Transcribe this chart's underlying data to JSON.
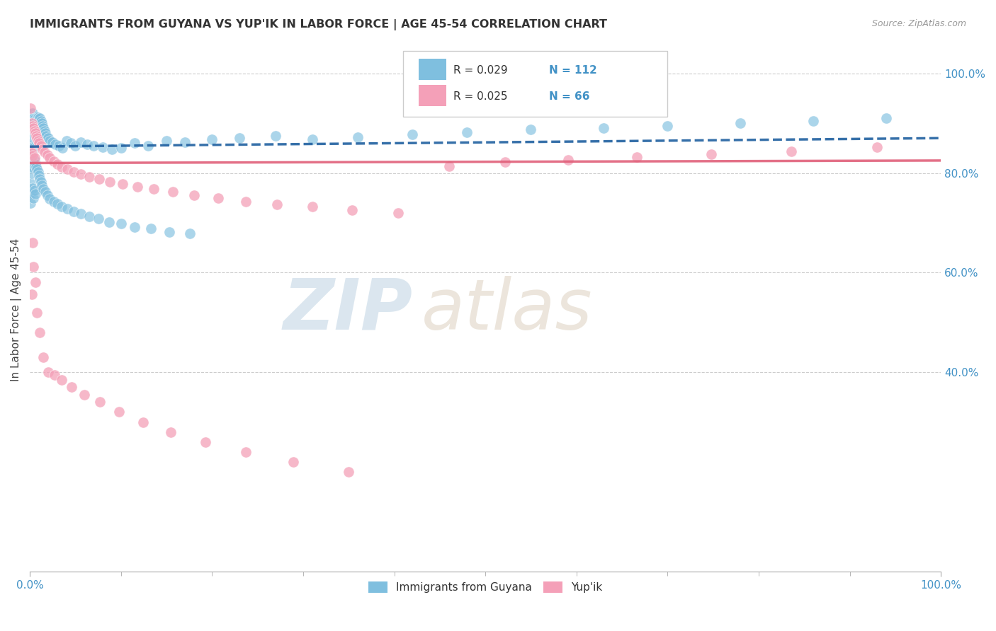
{
  "title": "IMMIGRANTS FROM GUYANA VS YUP'IK IN LABOR FORCE | AGE 45-54 CORRELATION CHART",
  "source": "Source: ZipAtlas.com",
  "ylabel": "In Labor Force | Age 45-54",
  "legend_labels": [
    "Immigrants from Guyana",
    "Yup'ik"
  ],
  "blue_color": "#7fbfdf",
  "pink_color": "#f4a0b8",
  "trend_blue": "#2060a0",
  "trend_pink": "#e0607a",
  "watermark_zip": "ZIP",
  "watermark_atlas": "atlas",
  "blue_scatter_x": [
    0.001,
    0.001,
    0.001,
    0.001,
    0.002,
    0.002,
    0.002,
    0.002,
    0.002,
    0.003,
    0.003,
    0.003,
    0.003,
    0.003,
    0.004,
    0.004,
    0.004,
    0.004,
    0.005,
    0.005,
    0.005,
    0.005,
    0.006,
    0.006,
    0.006,
    0.007,
    0.007,
    0.007,
    0.008,
    0.008,
    0.008,
    0.009,
    0.009,
    0.01,
    0.01,
    0.011,
    0.011,
    0.012,
    0.013,
    0.014,
    0.015,
    0.016,
    0.017,
    0.018,
    0.02,
    0.022,
    0.025,
    0.028,
    0.032,
    0.036,
    0.04,
    0.045,
    0.05,
    0.056,
    0.063,
    0.07,
    0.08,
    0.09,
    0.1,
    0.115,
    0.13,
    0.15,
    0.17,
    0.2,
    0.23,
    0.27,
    0.31,
    0.36,
    0.42,
    0.48,
    0.55,
    0.63,
    0.7,
    0.78,
    0.86,
    0.94,
    0.001,
    0.001,
    0.002,
    0.002,
    0.003,
    0.003,
    0.004,
    0.004,
    0.005,
    0.005,
    0.006,
    0.006,
    0.007,
    0.008,
    0.009,
    0.01,
    0.011,
    0.012,
    0.013,
    0.015,
    0.017,
    0.019,
    0.022,
    0.026,
    0.03,
    0.035,
    0.041,
    0.048,
    0.056,
    0.065,
    0.075,
    0.087,
    0.1,
    0.115,
    0.133,
    0.153,
    0.176
  ],
  "blue_scatter_y": [
    0.9,
    0.88,
    0.86,
    0.84,
    0.92,
    0.9,
    0.88,
    0.86,
    0.84,
    0.92,
    0.9,
    0.88,
    0.86,
    0.84,
    0.91,
    0.89,
    0.87,
    0.85,
    0.915,
    0.895,
    0.875,
    0.855,
    0.91,
    0.89,
    0.87,
    0.905,
    0.885,
    0.865,
    0.91,
    0.888,
    0.868,
    0.912,
    0.885,
    0.908,
    0.882,
    0.91,
    0.88,
    0.905,
    0.9,
    0.895,
    0.89,
    0.885,
    0.88,
    0.875,
    0.87,
    0.865,
    0.862,
    0.858,
    0.855,
    0.85,
    0.865,
    0.86,
    0.855,
    0.862,
    0.858,
    0.855,
    0.852,
    0.848,
    0.85,
    0.86,
    0.855,
    0.865,
    0.862,
    0.868,
    0.87,
    0.875,
    0.868,
    0.872,
    0.878,
    0.882,
    0.888,
    0.89,
    0.895,
    0.9,
    0.905,
    0.91,
    0.78,
    0.74,
    0.8,
    0.76,
    0.82,
    0.77,
    0.81,
    0.75,
    0.825,
    0.765,
    0.818,
    0.758,
    0.812,
    0.808,
    0.802,
    0.795,
    0.788,
    0.782,
    0.775,
    0.768,
    0.762,
    0.755,
    0.748,
    0.742,
    0.738,
    0.732,
    0.728,
    0.722,
    0.718,
    0.712,
    0.708,
    0.702,
    0.698,
    0.692,
    0.688,
    0.682,
    0.678
  ],
  "pink_scatter_x": [
    0.001,
    0.001,
    0.002,
    0.002,
    0.003,
    0.003,
    0.004,
    0.005,
    0.005,
    0.006,
    0.007,
    0.008,
    0.009,
    0.01,
    0.012,
    0.014,
    0.016,
    0.019,
    0.022,
    0.026,
    0.03,
    0.035,
    0.041,
    0.048,
    0.056,
    0.065,
    0.076,
    0.088,
    0.102,
    0.118,
    0.136,
    0.157,
    0.18,
    0.207,
    0.237,
    0.271,
    0.31,
    0.354,
    0.404,
    0.46,
    0.522,
    0.591,
    0.666,
    0.748,
    0.836,
    0.93,
    0.002,
    0.003,
    0.004,
    0.006,
    0.008,
    0.011,
    0.015,
    0.02,
    0.027,
    0.035,
    0.046,
    0.06,
    0.077,
    0.098,
    0.124,
    0.155,
    0.193,
    0.237,
    0.289,
    0.35
  ],
  "pink_scatter_y": [
    0.93,
    0.845,
    0.9,
    0.84,
    0.895,
    0.835,
    0.89,
    0.885,
    0.83,
    0.88,
    0.875,
    0.87,
    0.865,
    0.86,
    0.855,
    0.848,
    0.842,
    0.836,
    0.83,
    0.824,
    0.818,
    0.812,
    0.808,
    0.802,
    0.798,
    0.792,
    0.788,
    0.782,
    0.778,
    0.772,
    0.768,
    0.762,
    0.755,
    0.749,
    0.743,
    0.737,
    0.732,
    0.726,
    0.72,
    0.814,
    0.822,
    0.826,
    0.832,
    0.838,
    0.844,
    0.852,
    0.556,
    0.66,
    0.612,
    0.58,
    0.52,
    0.48,
    0.43,
    0.4,
    0.395,
    0.385,
    0.37,
    0.355,
    0.34,
    0.32,
    0.3,
    0.28,
    0.26,
    0.24,
    0.22,
    0.2
  ],
  "xlim": [
    0.0,
    1.0
  ],
  "ylim": [
    0.0,
    1.05
  ],
  "blue_trend_start": 0.853,
  "blue_trend_end": 0.87,
  "pink_trend_start": 0.82,
  "pink_trend_end": 0.825
}
